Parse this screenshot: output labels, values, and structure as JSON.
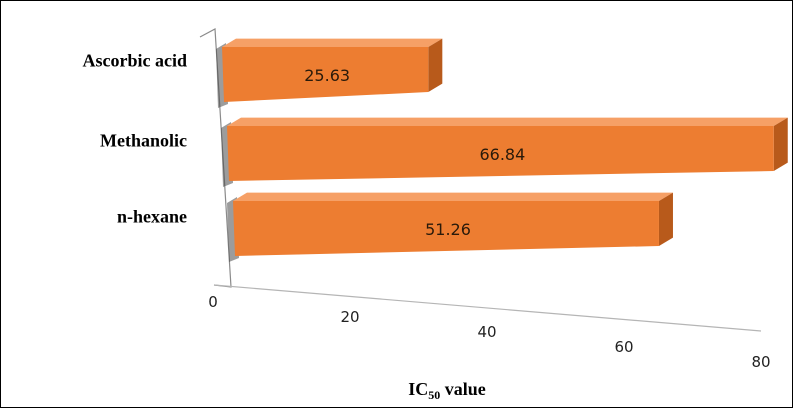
{
  "chart_data": {
    "type": "bar",
    "orientation": "horizontal",
    "style": "3d-clustered",
    "categories": [
      "Ascorbic acid",
      "Methanolic",
      "n-hexane"
    ],
    "values": [
      25.63,
      66.84,
      51.26
    ],
    "value_labels": [
      "25.63",
      "66.84",
      "51.26"
    ],
    "xlabel": {
      "main": "IC",
      "sub": "50",
      "rest": " value"
    },
    "xlim": [
      0,
      80
    ],
    "x_ticks": [
      0,
      20,
      40,
      60,
      80
    ],
    "x_tick_labels": [
      "0",
      "20",
      "40",
      "60",
      "80"
    ],
    "grid": false,
    "legend": "none",
    "colors": {
      "bar_front": "#ED7D31",
      "bar_top": "#F6A066",
      "bar_side": "#B85A1B",
      "bar_shadow": "#4a4a4a",
      "wall_line": "#8a8a8a",
      "floor_line": "#b5b5b5"
    }
  }
}
